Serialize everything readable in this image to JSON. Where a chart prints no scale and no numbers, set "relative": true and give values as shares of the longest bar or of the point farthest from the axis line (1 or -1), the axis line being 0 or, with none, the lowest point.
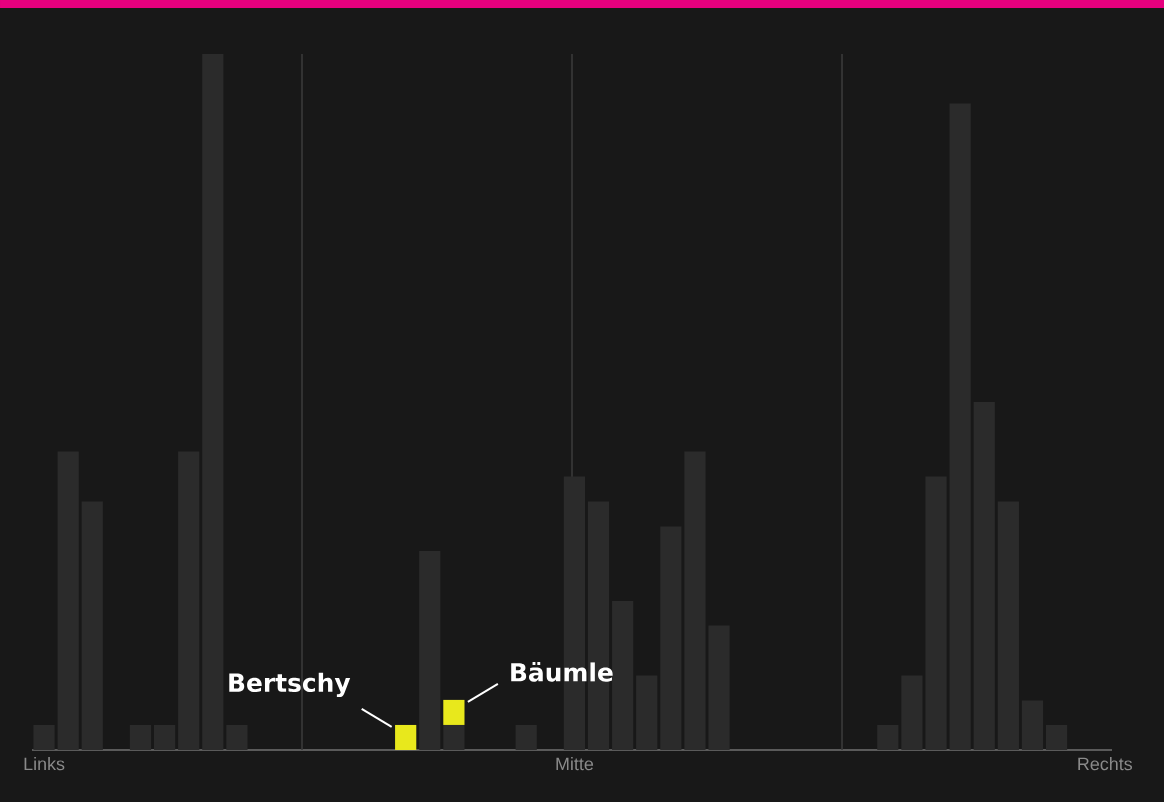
{
  "chart_data": {
    "type": "bar",
    "stacked": true,
    "relative": true,
    "categories": [
      "Links",
      null,
      null,
      null,
      null,
      null,
      null,
      null,
      null,
      null,
      null,
      null,
      null,
      null,
      null,
      null,
      null,
      null,
      null,
      null,
      null,
      null,
      "Mitte",
      null,
      null,
      null,
      null,
      null,
      null,
      null,
      null,
      null,
      null,
      null,
      null,
      null,
      null,
      null,
      null,
      null,
      null,
      null,
      null,
      null,
      "Rechts"
    ],
    "series": [
      {
        "color": "#2b2b2b",
        "values": [
          0.036,
          0.429,
          0.357,
          0,
          0.036,
          0.036,
          0.429,
          1,
          0.036,
          0,
          0,
          0,
          0,
          0,
          0,
          0,
          0.286,
          0.036,
          0,
          0,
          0.036,
          0,
          0.393,
          0.357,
          0.214,
          0.107,
          0.321,
          0.429,
          0.179,
          0,
          0,
          0,
          0,
          0,
          0,
          0.036,
          0.107,
          0.393,
          0.929,
          0.5,
          0.357,
          0.071,
          0.036,
          0,
          0
        ]
      },
      {
        "color": "#e8e81c",
        "values": [
          null,
          null,
          null,
          null,
          null,
          null,
          null,
          null,
          null,
          null,
          null,
          null,
          null,
          null,
          null,
          0.036,
          null,
          0.036,
          null,
          null,
          null,
          null,
          null,
          null,
          null,
          null,
          null,
          null,
          null,
          null,
          null,
          null,
          null,
          null,
          null,
          null,
          null,
          null,
          null,
          null,
          null,
          null,
          null,
          null,
          null
        ]
      }
    ],
    "annotations": [
      "Bertschy",
      "Bäumle"
    ]
  }
}
